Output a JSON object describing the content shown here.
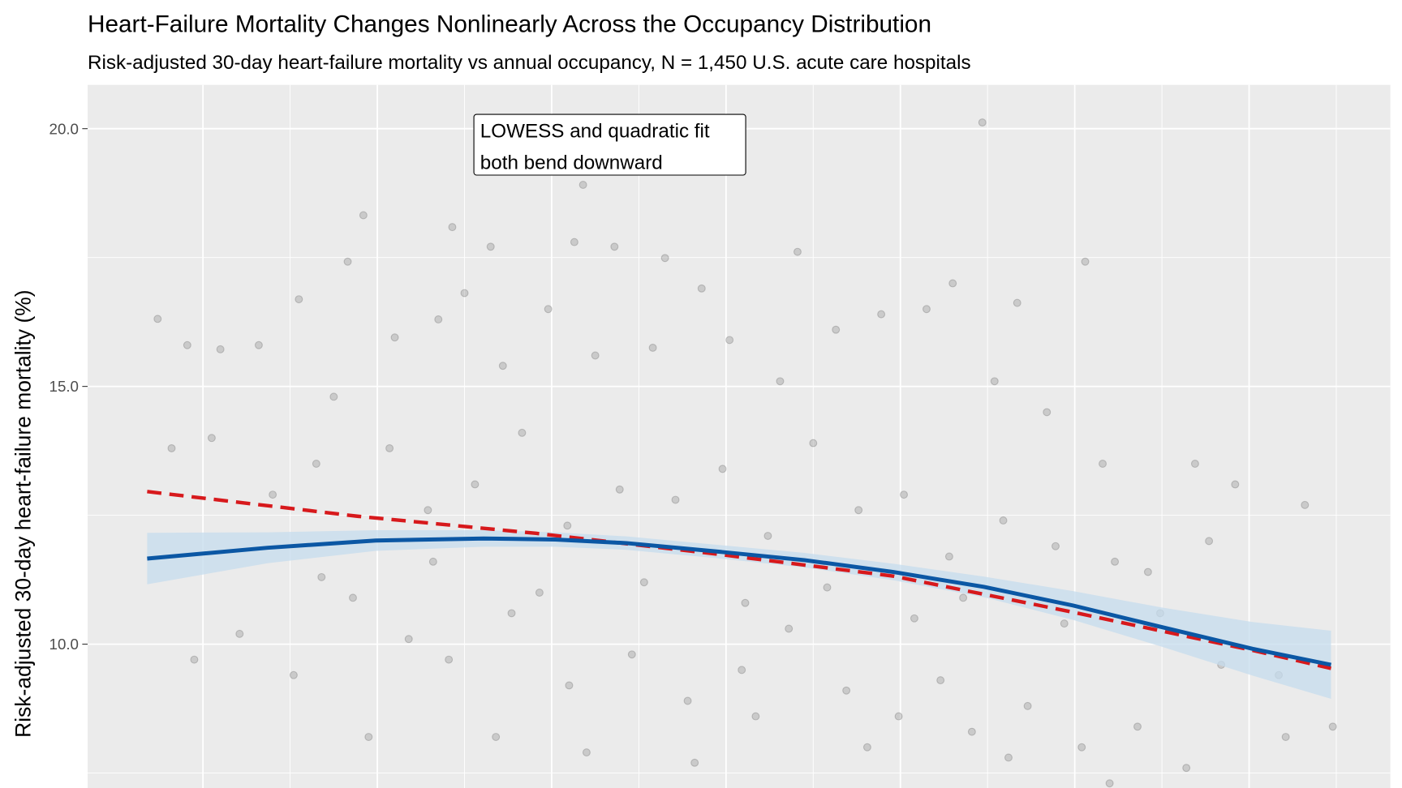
{
  "chart_data": {
    "type": "scatter",
    "title": "Heart-Failure Mortality Changes Nonlinearly Across the Occupancy Distribution",
    "subtitle": "Risk-adjusted 30-day heart-failure mortality vs annual occupancy, N = 1,450 U.S. acute care hospitals",
    "xlabel": "",
    "ylabel": "Risk-adjusted 30-day heart-failure mortality (%)",
    "xlim": [
      23.4,
      98.1
    ],
    "ylim": [
      7.2,
      20.9
    ],
    "x_gridlines": [
      30,
      40,
      50,
      60,
      70,
      80,
      90
    ],
    "y_ticks": [
      {
        "value": 10,
        "label": "10.0"
      },
      {
        "value": 15,
        "label": "15.0"
      },
      {
        "value": 20,
        "label": "20.0"
      }
    ],
    "y_minor_gridlines": [
      7.5,
      12.5,
      17.5
    ],
    "grid": true,
    "annotation": {
      "lines": [
        "LOWESS and quadratic fit",
        "both bend downward"
      ],
      "x": 40.3,
      "y": 20.0
    },
    "colors": {
      "panel": "#ebebeb",
      "grid": "#ffffff",
      "points": "#8c8c8c",
      "lowess": "#0b57a4",
      "band": "#c6dcee",
      "quadratic": "#d7191c"
    },
    "lowess": {
      "x": [
        26.8,
        33.7,
        39.9,
        46.1,
        50.2,
        54.3,
        59.4,
        64.5,
        69.6,
        74.8,
        79.9,
        85.0,
        90.2,
        94.7
      ],
      "y": [
        11.66,
        11.87,
        12.01,
        12.05,
        12.03,
        11.96,
        11.8,
        11.63,
        11.4,
        11.11,
        10.75,
        10.33,
        9.91,
        9.6
      ],
      "ci_halfwidth": [
        0.5,
        0.3,
        0.2,
        0.16,
        0.14,
        0.13,
        0.13,
        0.14,
        0.16,
        0.2,
        0.28,
        0.38,
        0.52,
        0.66
      ]
    },
    "quadratic": {
      "x": [
        26.8,
        38.9,
        49.1,
        59.4,
        69.6,
        79.9,
        90.2,
        94.7
      ],
      "y": [
        12.96,
        12.48,
        12.15,
        11.75,
        11.32,
        10.62,
        9.88,
        9.53
      ]
    },
    "points_sample": [
      [
        27.4,
        16.31
      ],
      [
        39.2,
        18.32
      ],
      [
        44.3,
        18.09
      ],
      [
        51.8,
        18.91
      ],
      [
        74.7,
        20.12
      ],
      [
        80.6,
        17.42
      ],
      [
        38.3,
        17.42
      ],
      [
        46.5,
        17.71
      ],
      [
        51.3,
        17.8
      ],
      [
        53.6,
        17.71
      ],
      [
        56.5,
        17.49
      ],
      [
        64.1,
        17.61
      ],
      [
        73.0,
        17.0
      ],
      [
        76.7,
        16.62
      ],
      [
        35.5,
        16.69
      ],
      [
        45.0,
        16.81
      ],
      [
        58.6,
        16.9
      ],
      [
        29.1,
        15.8
      ],
      [
        31.0,
        15.72
      ],
      [
        33.2,
        15.8
      ],
      [
        37.5,
        14.8
      ],
      [
        41.0,
        15.95
      ],
      [
        43.5,
        16.3
      ],
      [
        47.2,
        15.4
      ],
      [
        49.8,
        16.5
      ],
      [
        52.5,
        15.6
      ],
      [
        55.8,
        15.75
      ],
      [
        60.2,
        15.9
      ],
      [
        63.1,
        15.1
      ],
      [
        66.3,
        16.1
      ],
      [
        68.9,
        16.4
      ],
      [
        71.5,
        16.5
      ],
      [
        75.4,
        15.1
      ],
      [
        78.4,
        14.5
      ],
      [
        81.6,
        13.5
      ],
      [
        86.9,
        13.5
      ],
      [
        89.2,
        13.1
      ],
      [
        93.2,
        12.7
      ],
      [
        28.2,
        13.8
      ],
      [
        30.5,
        14.0
      ],
      [
        34.0,
        12.9
      ],
      [
        36.5,
        13.5
      ],
      [
        40.7,
        13.8
      ],
      [
        42.9,
        12.6
      ],
      [
        45.6,
        13.1
      ],
      [
        48.3,
        14.1
      ],
      [
        50.9,
        12.3
      ],
      [
        53.9,
        13.0
      ],
      [
        57.1,
        12.8
      ],
      [
        59.8,
        13.4
      ],
      [
        62.4,
        12.1
      ],
      [
        65.0,
        13.9
      ],
      [
        67.6,
        12.6
      ],
      [
        70.2,
        12.9
      ],
      [
        72.8,
        11.7
      ],
      [
        75.9,
        12.4
      ],
      [
        78.9,
        11.9
      ],
      [
        82.3,
        11.6
      ],
      [
        84.9,
        10.6
      ],
      [
        88.4,
        9.6
      ],
      [
        91.7,
        9.4
      ],
      [
        94.8,
        8.4
      ],
      [
        29.5,
        9.7
      ],
      [
        32.1,
        10.2
      ],
      [
        35.2,
        9.4
      ],
      [
        38.6,
        10.9
      ],
      [
        41.8,
        10.1
      ],
      [
        44.1,
        9.7
      ],
      [
        47.7,
        10.6
      ],
      [
        51.0,
        9.2
      ],
      [
        54.6,
        9.8
      ],
      [
        57.8,
        8.9
      ],
      [
        60.9,
        9.5
      ],
      [
        63.6,
        10.3
      ],
      [
        66.9,
        9.1
      ],
      [
        69.9,
        8.6
      ],
      [
        72.3,
        9.3
      ],
      [
        74.1,
        8.3
      ],
      [
        77.3,
        8.8
      ],
      [
        80.4,
        8.0
      ],
      [
        83.6,
        8.4
      ],
      [
        86.4,
        7.6
      ],
      [
        92.1,
        8.2
      ],
      [
        39.5,
        8.2
      ],
      [
        46.8,
        8.2
      ],
      [
        52.0,
        7.9
      ],
      [
        58.2,
        7.7
      ],
      [
        61.7,
        8.6
      ],
      [
        68.1,
        8.0
      ],
      [
        76.2,
        7.8
      ],
      [
        82.0,
        7.3
      ],
      [
        36.8,
        11.3
      ],
      [
        43.2,
        11.6
      ],
      [
        49.3,
        11.0
      ],
      [
        55.3,
        11.2
      ],
      [
        61.1,
        10.8
      ],
      [
        65.8,
        11.1
      ],
      [
        70.8,
        10.5
      ],
      [
        73.6,
        10.9
      ],
      [
        79.4,
        10.4
      ],
      [
        84.2,
        11.4
      ],
      [
        87.7,
        12.0
      ]
    ]
  }
}
